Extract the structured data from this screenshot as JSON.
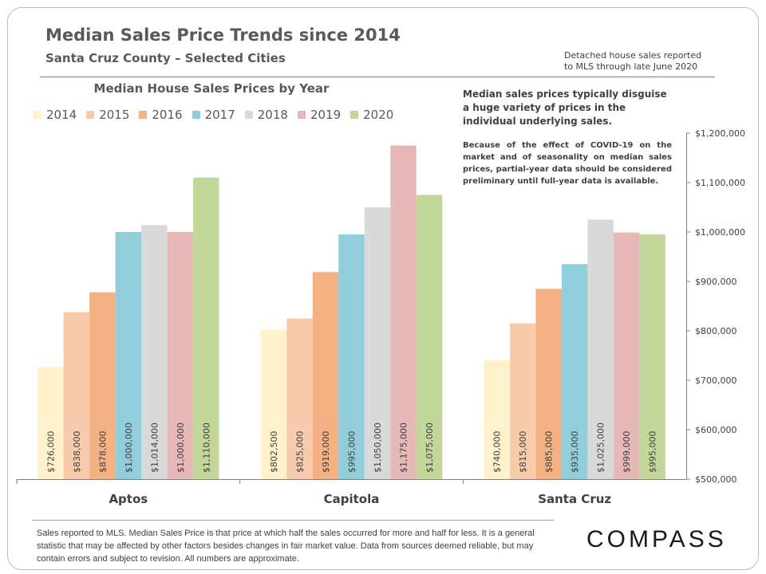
{
  "header": {
    "title": "Median Sales Price Trends since 2014",
    "subtitle": "Santa Cruz County – Selected Cities",
    "note_line1": "Detached house sales reported",
    "note_line2": "to MLS through late June 2020"
  },
  "callout": {
    "main": "Median sales prices typically disguise a huge variety of prices in the individual underlying sales.",
    "sub": "Because of the effect of COVID-19 on the market and of seasonality on median sales prices, partial-year data should be considered preliminary until full-year data is available."
  },
  "footnote": "Sales reported to MLS. Median Sales Price is that price at which half the sales occurred for more and half for less. It is a general statistic that may be affected by other factors besides changes in fair market value. Data from sources deemed  reliable, but may contain errors and subject to revision.  All numbers are approximate.",
  "logo": "COMPASS",
  "chart_data": {
    "type": "bar",
    "title": "Median House Sales Prices by Year",
    "categories": [
      "Aptos",
      "Capitola",
      "Santa Cruz"
    ],
    "series": [
      {
        "name": "2014",
        "color": "#fff2cc",
        "values": [
          726000,
          802500,
          740000
        ],
        "labels": [
          "$726,000",
          "$802,500",
          "$740,000"
        ]
      },
      {
        "name": "2015",
        "color": "#f8cbad",
        "values": [
          838000,
          825000,
          815000
        ],
        "labels": [
          "$838,000",
          "$825,000",
          "$815,000"
        ]
      },
      {
        "name": "2016",
        "color": "#f4b183",
        "values": [
          878000,
          919000,
          885000
        ],
        "labels": [
          "$878,000",
          "$919,000",
          "$885,000"
        ]
      },
      {
        "name": "2017",
        "color": "#92cddc",
        "values": [
          1000000,
          995000,
          935000
        ],
        "labels": [
          "$1,000,000",
          "$995,000",
          "$935,000"
        ]
      },
      {
        "name": "2018",
        "color": "#d9d9d9",
        "values": [
          1014000,
          1050000,
          1025000
        ],
        "labels": [
          "$1,014,000",
          "$1,050,000",
          "$1,025,000"
        ]
      },
      {
        "name": "2019",
        "color": "#e6b8b7",
        "values": [
          1000000,
          1175000,
          999000
        ],
        "labels": [
          "$1,000,000",
          "$1,175,000",
          "$999,000"
        ]
      },
      {
        "name": "2020",
        "color": "#c4d79b",
        "values": [
          1110000,
          1075000,
          995000
        ],
        "labels": [
          "$1,110,000",
          "$1,075,000",
          "$995,000"
        ]
      }
    ],
    "ylim": [
      500000,
      1200000
    ],
    "yticks": [
      {
        "value": 500000,
        "label": "$500,000"
      },
      {
        "value": 600000,
        "label": "$600,000"
      },
      {
        "value": 700000,
        "label": "$700,000"
      },
      {
        "value": 800000,
        "label": "$800,000"
      },
      {
        "value": 900000,
        "label": "$900,000"
      },
      {
        "value": 1000000,
        "label": "$1,000,000"
      },
      {
        "value": 1100000,
        "label": "$1,100,000"
      },
      {
        "value": 1200000,
        "label": "$1,200,000"
      }
    ],
    "y_axis_side": "right",
    "grid": false,
    "legend": "top-left"
  }
}
